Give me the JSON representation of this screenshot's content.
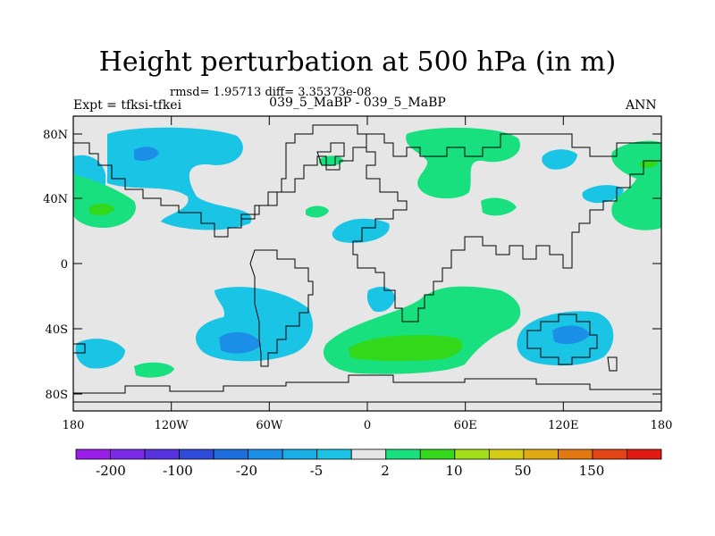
{
  "map": {
    "title": "Height perturbation at 500 hPa (in m)",
    "stats": "rmsd= 1.95713 diff= 3.35373e-08",
    "experiment": "Expt = tfksi-tfkei",
    "comparison": "039_5_MaBP - 039_5_MaBP",
    "season": "ANN",
    "lat_labels": [
      "80N",
      "40N",
      "0",
      "40S",
      "80S"
    ],
    "lon_labels": [
      "180",
      "120W",
      "60W",
      "0",
      "60E",
      "120E",
      "180"
    ],
    "lon_range": [
      -180,
      180
    ],
    "lat_range": [
      -90,
      90
    ],
    "colorbar": {
      "labels": [
        "-200",
        "-100",
        "-20",
        "-5",
        "2",
        "10",
        "50",
        "150"
      ],
      "colors": [
        "#9a1ee8",
        "#7b2be6",
        "#5733e0",
        "#2d4ad8",
        "#1d6fe0",
        "#1b8fe8",
        "#19aee6",
        "#19c4e4",
        "#e6e6e6",
        "#19e07e",
        "#33d81a",
        "#a3e01a",
        "#d6cc18",
        "#e2aa12",
        "#e27812",
        "#e24414",
        "#e21a14"
      ]
    }
  },
  "chart_data": {
    "type": "heatmap",
    "title": "Height perturbation at 500 hPa (in m)",
    "x_axis": [
      "180",
      "120W",
      "60W",
      "0",
      "60E",
      "120E",
      "180"
    ],
    "y_axis": [
      "80N",
      "40N",
      "0",
      "40S",
      "80S"
    ],
    "levels": [
      -200,
      -100,
      -20,
      -5,
      2,
      10,
      50,
      150
    ],
    "notes": "Contour fill of height perturbation; values mostly between -20 and 10 m"
  }
}
